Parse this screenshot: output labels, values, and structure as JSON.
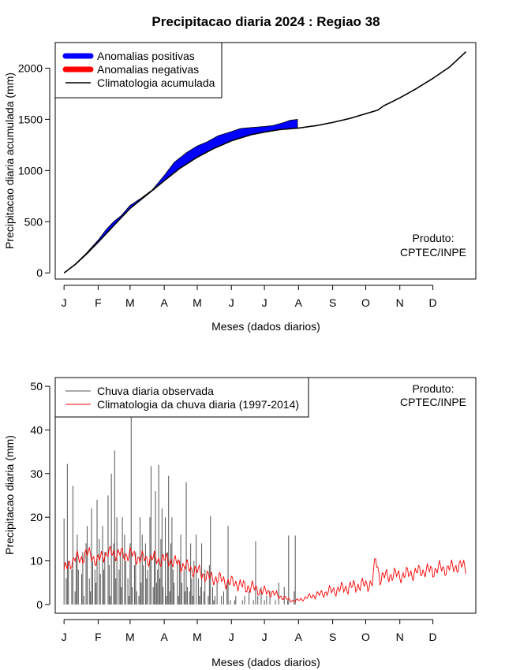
{
  "chart_data": [
    {
      "type": "area",
      "title": "Precipitacao diaria 2024 : Regiao 38",
      "xlabel": "Meses (dados diarios)",
      "ylabel": "Precipitacao diaria acumulada (mm)",
      "x_ticks": [
        "J",
        "F",
        "M",
        "A",
        "M",
        "J",
        "J",
        "A",
        "S",
        "O",
        "N",
        "D"
      ],
      "y_ticks": [
        0,
        500,
        1000,
        1500,
        2000
      ],
      "xlim_days": [
        -8,
        374
      ],
      "ylim": [
        -60,
        2250
      ],
      "legend": [
        {
          "label": "Anomalias positivas",
          "color": "#0000ff"
        },
        {
          "label": "Anomalias negativas",
          "color": "#ff0000"
        },
        {
          "label": "Climatologia acumulada",
          "color": "#000000"
        }
      ],
      "producer": [
        "Produto:",
        "CPTEC/INPE"
      ],
      "observed_end_day": 212,
      "climatology_accumulated": {
        "days": [
          0,
          10,
          20,
          31,
          45,
          60,
          75,
          91,
          105,
          121,
          135,
          152,
          170,
          182,
          196,
          213,
          230,
          244,
          260,
          274,
          285,
          290,
          305,
          320,
          335,
          350,
          365
        ],
        "values": [
          0,
          80,
          180,
          300,
          460,
          630,
          760,
          900,
          1020,
          1130,
          1210,
          1290,
          1350,
          1375,
          1400,
          1415,
          1440,
          1470,
          1510,
          1555,
          1590,
          1630,
          1710,
          1800,
          1900,
          2010,
          2160
        ]
      },
      "observed_accumulated": {
        "days": [
          0,
          10,
          20,
          31,
          38,
          45,
          52,
          60,
          70,
          80,
          91,
          100,
          112,
          121,
          130,
          140,
          152,
          160,
          170,
          182,
          190,
          200,
          205,
          212
        ],
        "values": [
          0,
          85,
          190,
          320,
          420,
          500,
          560,
          660,
          730,
          810,
          950,
          1080,
          1180,
          1240,
          1280,
          1340,
          1380,
          1410,
          1420,
          1430,
          1440,
          1470,
          1490,
          1500
        ]
      }
    },
    {
      "type": "line",
      "xlabel": "Meses (dados diarios)",
      "ylabel": "Precipitacao diaria (mm)",
      "x_ticks": [
        "J",
        "F",
        "M",
        "A",
        "M",
        "J",
        "J",
        "A",
        "S",
        "O",
        "N",
        "D"
      ],
      "y_ticks": [
        0,
        10,
        20,
        30,
        40,
        50
      ],
      "xlim_days": [
        -8,
        374
      ],
      "ylim": [
        -2,
        52
      ],
      "legend": [
        {
          "label": "Chuva diaria observada",
          "color": "#555555"
        },
        {
          "label": "Climatologia da chuva diaria (1997-2014)",
          "color": "#ff0000"
        }
      ],
      "producer": [
        "Produto:",
        "CPTEC/INPE"
      ],
      "observed_daily": {
        "start_day": 0,
        "values": [
          19.7,
          0,
          6,
          32.2,
          10,
          0,
          0,
          8,
          27.2,
          0,
          3,
          11,
          16,
          8,
          0,
          0,
          7,
          12,
          2,
          0,
          14,
          18,
          0,
          6,
          3,
          22,
          10,
          0,
          8,
          5,
          24,
          0,
          15,
          7,
          0,
          18,
          8,
          12,
          0,
          0,
          25,
          9,
          2,
          30,
          0,
          14,
          35.3,
          6,
          20,
          0,
          8,
          12,
          4,
          20,
          0,
          16,
          10,
          0,
          6,
          2,
          14,
          43.7,
          4,
          0,
          9,
          12,
          3,
          0,
          2,
          20,
          5,
          16,
          9,
          0,
          14,
          6,
          8,
          0,
          20,
          31.7,
          0,
          4,
          12,
          26,
          5,
          8,
          32,
          6,
          15,
          22,
          4,
          0,
          20,
          2,
          12,
          29.5,
          3,
          14,
          20,
          8,
          5,
          0,
          0,
          10,
          2,
          10,
          16,
          5,
          0,
          8,
          3,
          28,
          4,
          0,
          3,
          14,
          6,
          2,
          10,
          0,
          16,
          0,
          6,
          2,
          4,
          14,
          0,
          3,
          8,
          0,
          0,
          2,
          9,
          20.3,
          0,
          4,
          1,
          2,
          0,
          5,
          0,
          0,
          0,
          2,
          0,
          3,
          0,
          0,
          5,
          18,
          0,
          1,
          0,
          0,
          0,
          1,
          2,
          0,
          0,
          0,
          0,
          0,
          1,
          0,
          2,
          0,
          0,
          0,
          3,
          0,
          0,
          0,
          1,
          0,
          14.5,
          0,
          2,
          0,
          0,
          4,
          0,
          0,
          1,
          0,
          2,
          0,
          0,
          3,
          0,
          0,
          0,
          0,
          1,
          0,
          0,
          5,
          0,
          0,
          0,
          0,
          4,
          0,
          0,
          1,
          15.8,
          0,
          0,
          0,
          0,
          3,
          15.8,
          0,
          0,
          0,
          0,
          0,
          0
        ]
      },
      "climatology_daily": {
        "days": [
          0,
          5,
          10,
          15,
          20,
          25,
          30,
          35,
          40,
          45,
          50,
          55,
          60,
          65,
          70,
          75,
          80,
          85,
          90,
          95,
          100,
          105,
          110,
          115,
          120,
          125,
          130,
          135,
          140,
          145,
          150,
          155,
          160,
          165,
          170,
          175,
          180,
          185,
          190,
          195,
          200,
          205,
          210,
          215,
          220,
          225,
          230,
          235,
          240,
          245,
          250,
          255,
          260,
          265,
          270,
          275,
          280,
          283,
          287,
          290,
          295,
          300,
          305,
          310,
          315,
          320,
          325,
          330,
          335,
          340,
          345,
          350,
          355,
          360,
          365
        ],
        "values": [
          8,
          9,
          11,
          10,
          12,
          11,
          10,
          11,
          12,
          11.5,
          12,
          11,
          12,
          10.5,
          11,
          10,
          11,
          10,
          10.5,
          10,
          10,
          9,
          9,
          8,
          8,
          7,
          6.5,
          6,
          6,
          5.5,
          5,
          5,
          4.5,
          4,
          4,
          3.5,
          3,
          3,
          2.5,
          2,
          1.5,
          1,
          0.8,
          1.2,
          1.5,
          2,
          2.2,
          2.5,
          3,
          3.2,
          3.5,
          3.8,
          4,
          4.2,
          4.5,
          4.5,
          5,
          10.5,
          6,
          6.5,
          6.5,
          7,
          6.5,
          7,
          7,
          7.5,
          7.5,
          8,
          7.5,
          8.5,
          8,
          8.5,
          8.5,
          9,
          8.5
        ]
      }
    }
  ]
}
